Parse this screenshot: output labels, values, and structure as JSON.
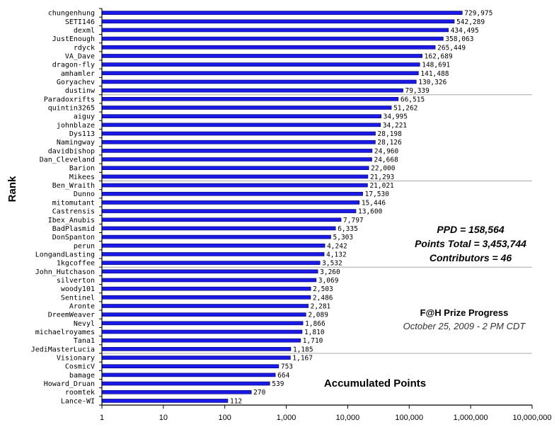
{
  "chart_data": {
    "type": "bar",
    "orientation": "horizontal",
    "title": "F@H Prize Progress",
    "subtitle": "October 25, 2009 - 2 PM CDT",
    "xlabel": "Accumulated Points",
    "ylabel": "Rank",
    "x_scale": "log",
    "xlim": [
      1,
      10000000
    ],
    "x_ticks": [
      "1",
      "10",
      "100",
      "1,000",
      "10,000",
      "100,000",
      "1,000,000",
      "10,000,000"
    ],
    "bar_color": "#1a1ae6",
    "gridlines": "horizontal, every 10 ranks",
    "stats": [
      "PPD = 158,564",
      "Points Total = 3,453,744",
      "Contributors = 46"
    ],
    "categories": [
      "chungenhung",
      "SETI146",
      "dexml",
      "JustEnough",
      "rdyck",
      "VA_Dave",
      "dragon-fly",
      "amhamler",
      "Goryachev",
      "dustinw",
      "Paradoxrifts",
      "quintin3265",
      "aiguy",
      "johnblaze",
      "Dys113",
      "Namingway",
      "davidbishop",
      "Dan_Cleveland",
      "Barion",
      "Mikees",
      "Ben_Wraith",
      "Dunno",
      "mitomutant",
      "Castrensis",
      "Ibex_Anubis",
      "BadPlasmid",
      "DonSpanton",
      "perun",
      "LongandLasting",
      "1kgcoffee",
      "John_Hutchason",
      "silverton",
      "woody101",
      "Sentinel",
      "Aronte",
      "DreemWeaver",
      "Nevyl",
      "michaelroyames",
      "Tana1",
      "JediMasterLucia",
      "Visionary",
      "CosmicV",
      "bamage",
      "Howard_Druan",
      "roomtek",
      "Lance-WI"
    ],
    "values": [
      729975,
      542289,
      434495,
      358063,
      265449,
      162689,
      148691,
      141488,
      130326,
      79339,
      66515,
      51262,
      34995,
      34221,
      28198,
      28126,
      24960,
      24668,
      22000,
      21293,
      21021,
      17530,
      15446,
      13600,
      7797,
      6335,
      5303,
      4242,
      4132,
      3532,
      3260,
      3069,
      2503,
      2486,
      2281,
      2089,
      1866,
      1810,
      1710,
      1185,
      1167,
      753,
      664,
      539,
      270,
      112
    ],
    "value_labels": [
      "729,975",
      "542,289",
      "434,495",
      "358,063",
      "265,449",
      "162,689",
      "148,691",
      "141,488",
      "130,326",
      "79,339",
      "66,515",
      "51,262",
      "34,995",
      "34,221",
      "28,198",
      "28,126",
      "24,960",
      "24,668",
      "22,000",
      "21,293",
      "21,021",
      "17,530",
      "15,446",
      "13,600",
      "7,797",
      "6,335",
      "5,303",
      "4,242",
      "4,132",
      "3,532",
      "3,260",
      "3,069",
      "2,503",
      "2,486",
      "2,281",
      "2,089",
      "1,866",
      "1,810",
      "1,710",
      "1,185",
      "1,167",
      "753",
      "664",
      "539",
      "270",
      "112"
    ]
  }
}
